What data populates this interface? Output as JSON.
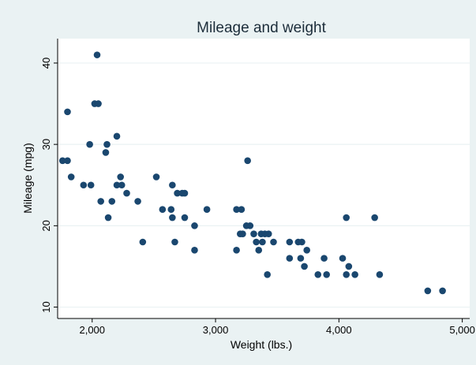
{
  "chart_data": {
    "type": "scatter",
    "title": "Mileage and weight",
    "xlabel": "Weight (lbs.)",
    "ylabel": "Mileage (mpg)",
    "xlim": [
      1720,
      5060
    ],
    "ylim": [
      8.6,
      43.0
    ],
    "x_ticks": [
      {
        "value": 2000,
        "label": "2,000"
      },
      {
        "value": 3000,
        "label": "3,000"
      },
      {
        "value": 4000,
        "label": "4,000"
      },
      {
        "value": 5000,
        "label": "5,000"
      }
    ],
    "y_ticks": [
      {
        "value": 10,
        "label": "10"
      },
      {
        "value": 20,
        "label": "20"
      },
      {
        "value": 30,
        "label": "30"
      },
      {
        "value": 40,
        "label": "40"
      }
    ],
    "grid": "horizontal",
    "legend": "none",
    "colors": {
      "background": "#eaf2f3",
      "plot_background": "#ffffff",
      "marker": "#1a476f",
      "grid": "#eaf2f3",
      "title": "#1c2d3a"
    },
    "points": [
      [
        1760,
        28
      ],
      [
        1800,
        28
      ],
      [
        1800,
        34
      ],
      [
        1830,
        26
      ],
      [
        1930,
        25
      ],
      [
        1980,
        30
      ],
      [
        1990,
        25
      ],
      [
        2020,
        35
      ],
      [
        2040,
        41
      ],
      [
        2050,
        35
      ],
      [
        2070,
        23
      ],
      [
        2110,
        29
      ],
      [
        2120,
        30
      ],
      [
        2130,
        21
      ],
      [
        2160,
        23
      ],
      [
        2200,
        31
      ],
      [
        2200,
        25
      ],
      [
        2230,
        26
      ],
      [
        2240,
        25
      ],
      [
        2280,
        24
      ],
      [
        2370,
        23
      ],
      [
        2410,
        18
      ],
      [
        2520,
        26
      ],
      [
        2570,
        22
      ],
      [
        2640,
        22
      ],
      [
        2650,
        25
      ],
      [
        2650,
        21
      ],
      [
        2670,
        18
      ],
      [
        2690,
        24
      ],
      [
        2730,
        24
      ],
      [
        2750,
        24
      ],
      [
        2750,
        21
      ],
      [
        2830,
        20
      ],
      [
        2830,
        17
      ],
      [
        2930,
        22
      ],
      [
        3170,
        22
      ],
      [
        3170,
        17
      ],
      [
        3200,
        19
      ],
      [
        3210,
        22
      ],
      [
        3220,
        19
      ],
      [
        3250,
        20
      ],
      [
        3260,
        28
      ],
      [
        3280,
        20
      ],
      [
        3310,
        19
      ],
      [
        3330,
        18
      ],
      [
        3350,
        17
      ],
      [
        3370,
        19
      ],
      [
        3380,
        18
      ],
      [
        3400,
        19
      ],
      [
        3420,
        14
      ],
      [
        3430,
        19
      ],
      [
        3470,
        18
      ],
      [
        3600,
        18
      ],
      [
        3600,
        16
      ],
      [
        3670,
        18
      ],
      [
        3690,
        16
      ],
      [
        3700,
        18
      ],
      [
        3720,
        15
      ],
      [
        3740,
        17
      ],
      [
        3830,
        14
      ],
      [
        3880,
        16
      ],
      [
        3900,
        14
      ],
      [
        4030,
        16
      ],
      [
        4060,
        21
      ],
      [
        4060,
        14
      ],
      [
        4080,
        15
      ],
      [
        4130,
        14
      ],
      [
        4290,
        21
      ],
      [
        4330,
        14
      ],
      [
        4720,
        12
      ],
      [
        4840,
        12
      ]
    ]
  }
}
